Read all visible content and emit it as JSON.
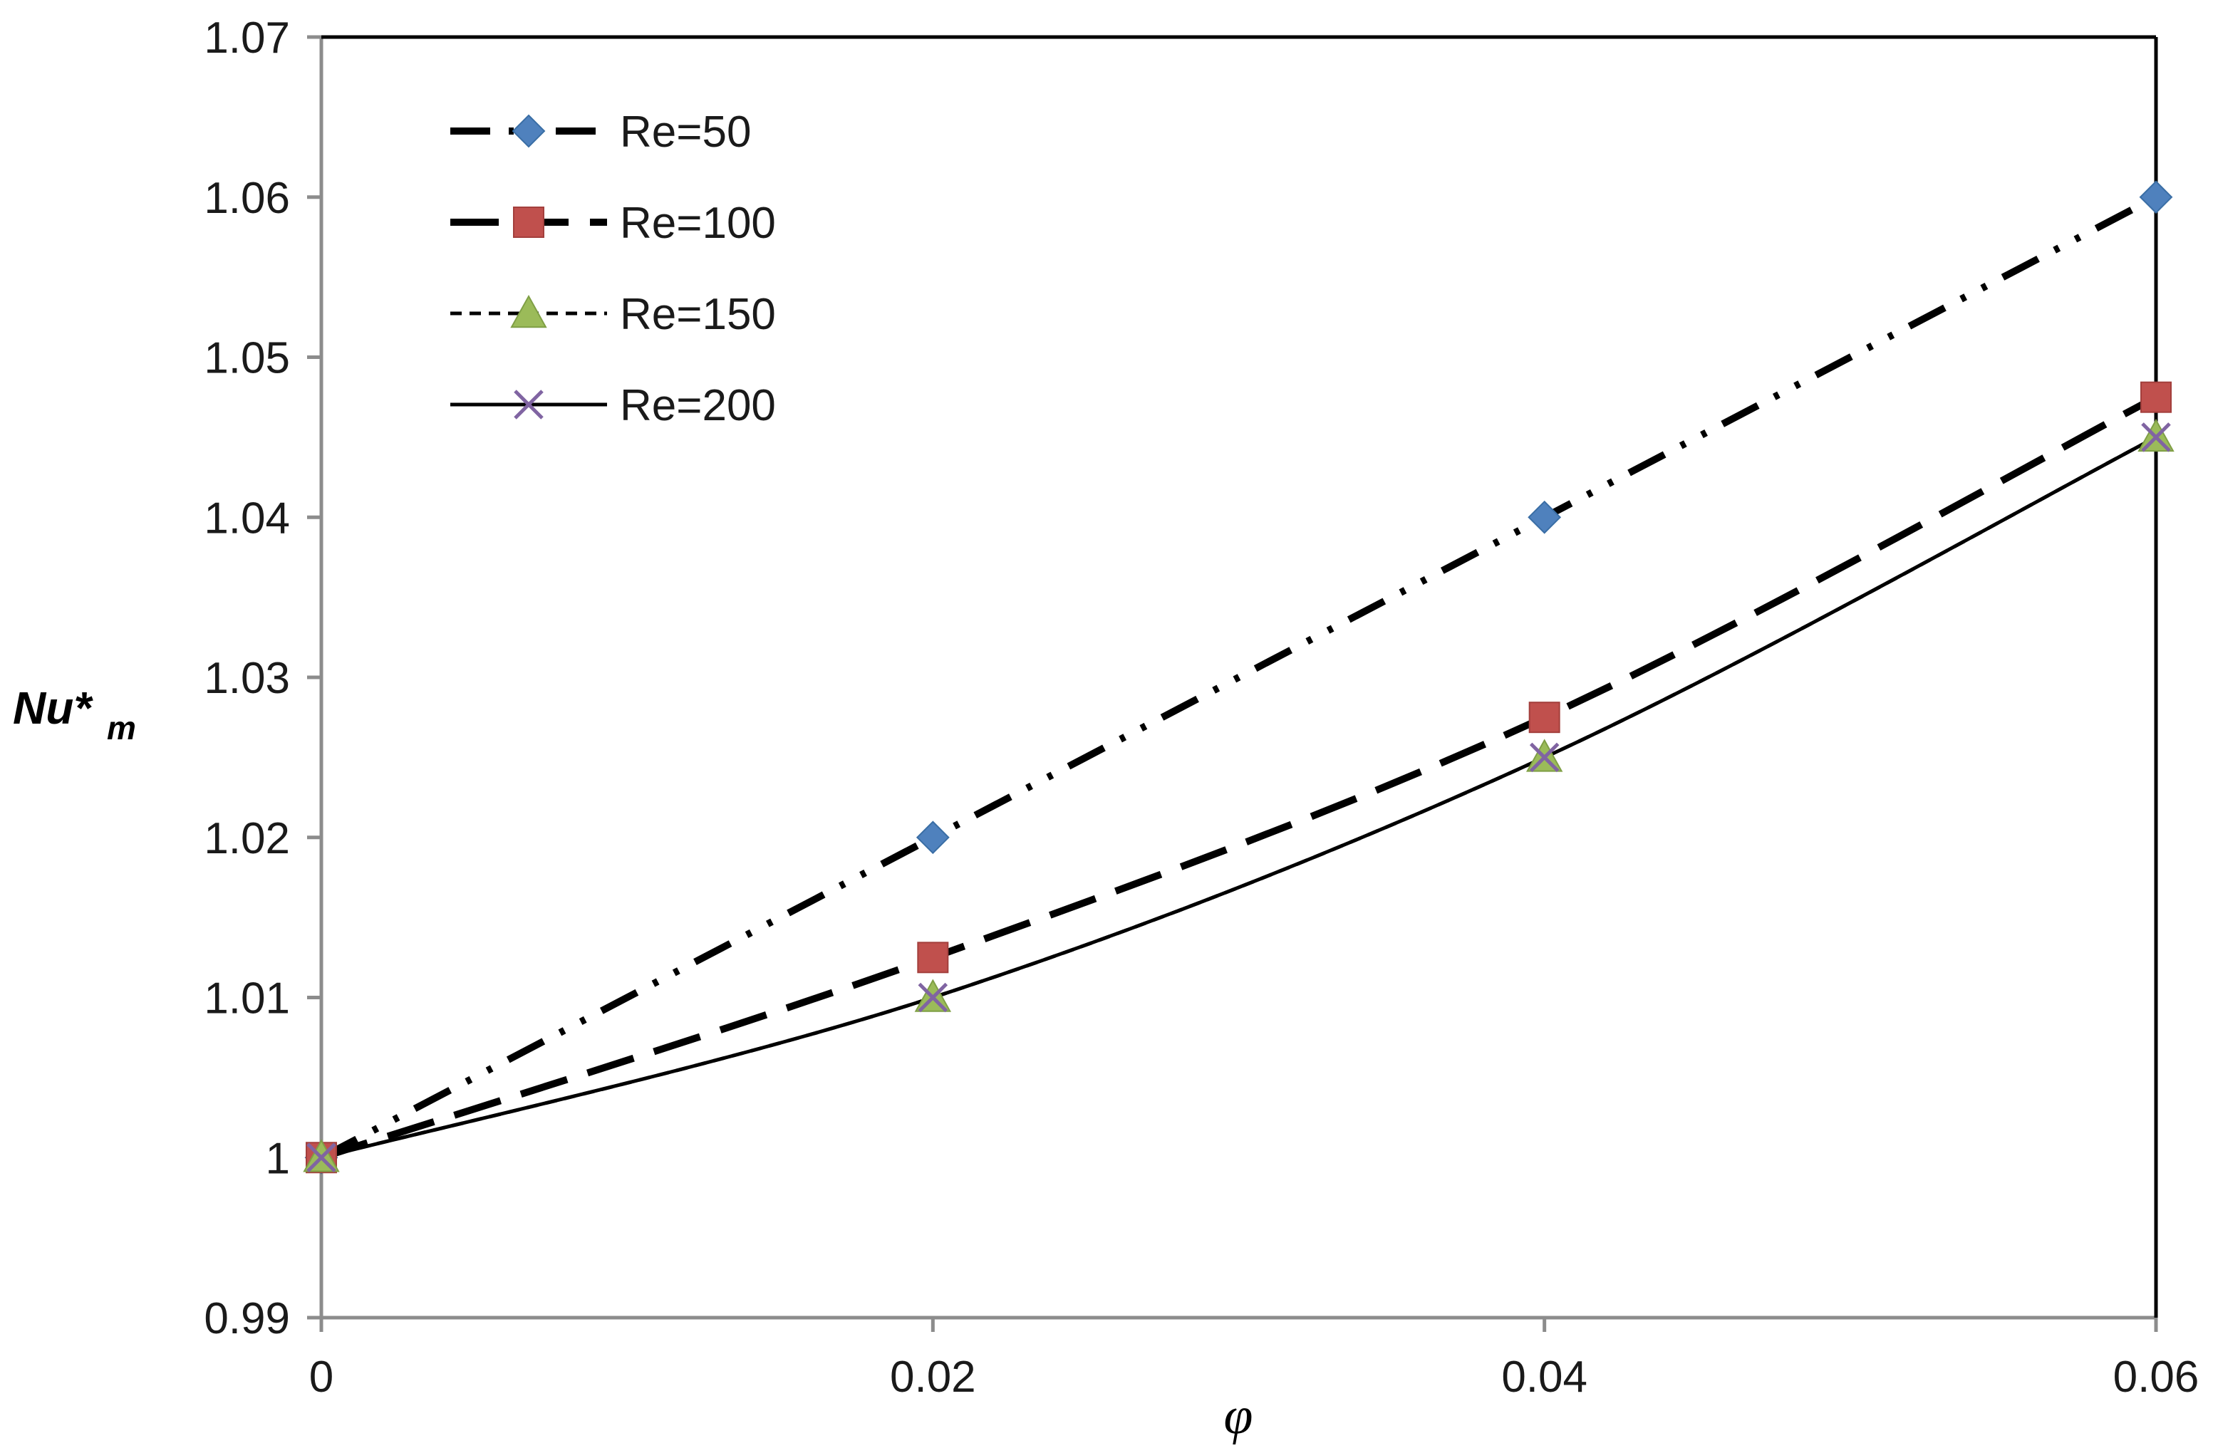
{
  "chart_data": {
    "type": "line",
    "title": "",
    "xlabel": "φ",
    "ylabel_main": "Nu*",
    "ylabel_sub": "m",
    "x": [
      0,
      0.02,
      0.04,
      0.06
    ],
    "x_tick_labels": [
      "0",
      "0.02",
      "0.04",
      "0.06"
    ],
    "y_tick_labels": [
      "0.99",
      "1",
      "1.01",
      "1.02",
      "1.03",
      "1.04",
      "1.05",
      "1.06",
      "1.07"
    ],
    "xlim": [
      0,
      0.06
    ],
    "ylim": [
      0.99,
      1.07
    ],
    "y_ticks": [
      0.99,
      1.0,
      1.01,
      1.02,
      1.03,
      1.04,
      1.05,
      1.06,
      1.07
    ],
    "grid": false,
    "legend_position": "top-left",
    "series": [
      {
        "name": "Re=50",
        "values": [
          1.0,
          1.02,
          1.04,
          1.06
        ],
        "marker": "diamond",
        "marker_color": "#4f81bd",
        "line_style": "dash-dot-dot",
        "smooth": false
      },
      {
        "name": "Re=100",
        "values": [
          1.0,
          1.0125,
          1.0275,
          1.0475
        ],
        "marker": "square",
        "marker_color": "#c0504d",
        "line_style": "long-dash",
        "smooth": true
      },
      {
        "name": "Re=150",
        "values": [
          1.0,
          1.01,
          1.025,
          1.045
        ],
        "marker": "triangle",
        "marker_color": "#9bbb59",
        "line_style": "short-dash",
        "smooth": true
      },
      {
        "name": "Re=200",
        "values": [
          1.0,
          1.01,
          1.025,
          1.045
        ],
        "marker": "x",
        "marker_color": "#8064a2",
        "line_style": "solid",
        "smooth": true
      }
    ]
  }
}
